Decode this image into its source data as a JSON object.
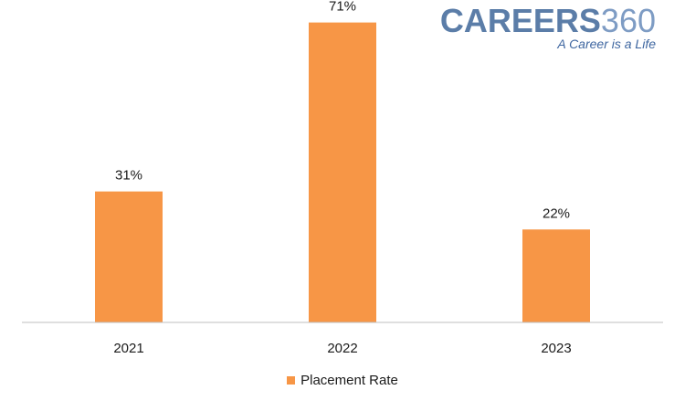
{
  "logo": {
    "brand_text": "CAREERS",
    "brand_number": "360",
    "tagline": "A Career is a Life",
    "color": "#5B7DA8"
  },
  "chart_data": {
    "type": "bar",
    "categories": [
      "2021",
      "2022",
      "2023"
    ],
    "series": [
      {
        "name": "Placement Rate",
        "values": [
          31,
          71,
          22
        ],
        "labels": [
          "31%",
          "71%",
          "22%"
        ],
        "color": "#F79646"
      }
    ],
    "title": "",
    "xlabel": "",
    "ylabel": "",
    "ylim": [
      0,
      72
    ],
    "grid": false,
    "legend": "bottom"
  }
}
